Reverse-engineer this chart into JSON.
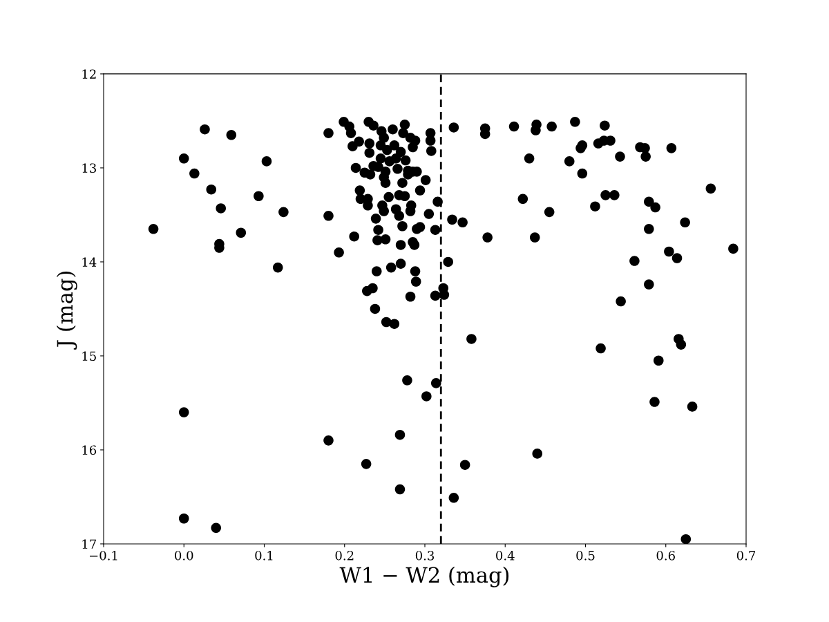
{
  "chart_data": {
    "type": "scatter",
    "xlabel": "W1 − W2 (mag)",
    "ylabel": "J (mag)",
    "xlim": [
      -0.1,
      0.7
    ],
    "ylim": [
      17,
      12
    ],
    "xticks": [
      {
        "value": -0.1,
        "label": "−0.1"
      },
      {
        "value": 0.0,
        "label": "0.0"
      },
      {
        "value": 0.1,
        "label": "0.1"
      },
      {
        "value": 0.2,
        "label": "0.2"
      },
      {
        "value": 0.3,
        "label": "0.3"
      },
      {
        "value": 0.4,
        "label": "0.4"
      },
      {
        "value": 0.5,
        "label": "0.5"
      },
      {
        "value": 0.6,
        "label": "0.6"
      },
      {
        "value": 0.7,
        "label": "0.7"
      }
    ],
    "yticks": [
      12,
      13,
      14,
      15,
      16,
      17
    ],
    "grid": false,
    "marker": "circle",
    "ref_lines": [
      {
        "axis": "x",
        "value": 0.32,
        "color": "#000000",
        "line_style": "dashed"
      }
    ],
    "series": [
      {
        "color": "#000000",
        "x": [
          -0.038,
          0.026,
          0.059,
          0.0,
          0.013,
          0.034,
          0.046,
          0.044,
          0.044,
          0.071,
          0.093,
          0.103,
          0.124,
          0.117,
          0.0,
          0.0,
          0.04,
          0.18,
          0.199,
          0.206,
          0.208,
          0.218,
          0.21,
          0.231,
          0.231,
          0.23,
          0.236,
          0.246,
          0.249,
          0.245,
          0.253,
          0.26,
          0.262,
          0.275,
          0.273,
          0.282,
          0.288,
          0.285,
          0.27,
          0.276,
          0.264,
          0.256,
          0.245,
          0.236,
          0.214,
          0.225,
          0.232,
          0.242,
          0.251,
          0.249,
          0.251,
          0.266,
          0.279,
          0.285,
          0.29,
          0.279,
          0.272,
          0.301,
          0.307,
          0.307,
          0.308,
          0.294,
          0.219,
          0.22,
          0.229,
          0.229,
          0.255,
          0.268,
          0.275,
          0.283,
          0.282,
          0.247,
          0.249,
          0.264,
          0.268,
          0.305,
          0.316,
          0.18,
          0.239,
          0.272,
          0.29,
          0.294,
          0.313,
          0.242,
          0.212,
          0.336,
          0.334,
          0.347,
          0.241,
          0.251,
          0.27,
          0.285,
          0.287,
          0.193,
          0.329,
          0.27,
          0.258,
          0.24,
          0.288,
          0.289,
          0.235,
          0.228,
          0.323,
          0.324,
          0.313,
          0.282,
          0.238,
          0.252,
          0.262,
          0.358,
          0.278,
          0.314,
          0.302,
          0.18,
          0.269,
          0.227,
          0.35,
          0.269,
          0.336,
          0.375,
          0.375,
          0.411,
          0.439,
          0.438,
          0.458,
          0.487,
          0.524,
          0.496,
          0.494,
          0.516,
          0.523,
          0.531,
          0.568,
          0.574,
          0.575,
          0.607,
          0.43,
          0.48,
          0.543,
          0.496,
          0.656,
          0.422,
          0.525,
          0.536,
          0.512,
          0.579,
          0.587,
          0.455,
          0.378,
          0.437,
          0.624,
          0.579,
          0.684,
          0.604,
          0.614,
          0.561,
          0.579,
          0.544,
          0.519,
          0.616,
          0.619,
          0.591,
          0.586,
          0.633,
          0.44,
          0.625
        ],
        "values": [
          13.65,
          12.59,
          12.65,
          12.9,
          13.06,
          13.23,
          13.43,
          13.81,
          13.85,
          13.69,
          13.3,
          12.93,
          13.47,
          14.06,
          15.6,
          16.73,
          16.83,
          12.63,
          12.51,
          12.56,
          12.63,
          12.72,
          12.77,
          12.74,
          12.84,
          12.51,
          12.55,
          12.61,
          12.68,
          12.76,
          12.81,
          12.59,
          12.76,
          12.54,
          12.63,
          12.68,
          12.71,
          12.78,
          12.83,
          12.92,
          12.9,
          12.93,
          12.9,
          12.98,
          13.0,
          13.05,
          13.07,
          12.99,
          13.04,
          13.1,
          13.16,
          13.01,
          13.03,
          13.04,
          13.04,
          13.07,
          13.16,
          13.13,
          12.63,
          12.71,
          12.82,
          13.24,
          13.24,
          13.33,
          13.33,
          13.4,
          13.31,
          13.29,
          13.3,
          13.4,
          13.46,
          13.4,
          13.46,
          13.44,
          13.51,
          13.49,
          13.36,
          13.51,
          13.54,
          13.62,
          13.65,
          13.63,
          13.66,
          13.66,
          13.73,
          12.57,
          13.55,
          13.58,
          13.77,
          13.76,
          13.82,
          13.79,
          13.82,
          13.9,
          14.0,
          14.02,
          14.06,
          14.1,
          14.1,
          14.21,
          14.28,
          14.31,
          14.28,
          14.35,
          14.36,
          14.37,
          14.5,
          14.64,
          14.66,
          14.82,
          15.26,
          15.29,
          15.43,
          15.9,
          15.84,
          16.15,
          16.16,
          16.42,
          16.51,
          12.58,
          12.64,
          12.56,
          12.54,
          12.6,
          12.56,
          12.51,
          12.55,
          12.76,
          12.79,
          12.74,
          12.71,
          12.71,
          12.78,
          12.79,
          12.88,
          12.79,
          12.9,
          12.93,
          12.88,
          13.06,
          13.22,
          13.33,
          13.29,
          13.29,
          13.41,
          13.36,
          13.42,
          13.47,
          13.74,
          13.74,
          13.58,
          13.65,
          13.86,
          13.89,
          13.96,
          13.99,
          14.24,
          14.42,
          14.92,
          14.82,
          14.88,
          15.05,
          15.49,
          15.54,
          16.04,
          16.95
        ]
      }
    ]
  }
}
